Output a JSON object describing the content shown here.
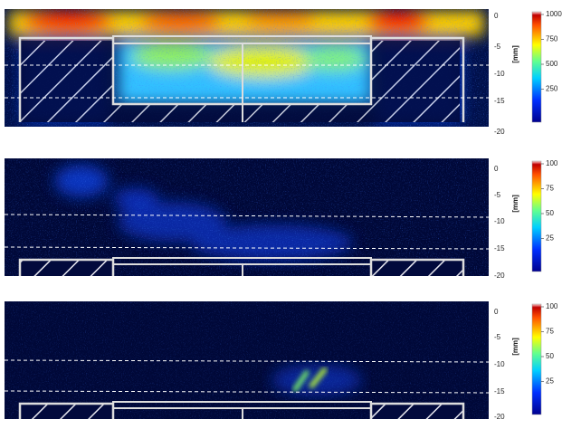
{
  "panels": [
    {
      "y_label": "[mm]",
      "y_ticks": [
        "0",
        "-5",
        "-10",
        "-15",
        "-20"
      ],
      "colorbar_ticks": [
        "1000",
        "750",
        "500",
        "250"
      ]
    },
    {
      "y_label": "[mm]",
      "y_ticks": [
        "0",
        "-5",
        "-10",
        "-15",
        "-20"
      ],
      "colorbar_ticks": [
        "100",
        "75",
        "50",
        "25"
      ]
    },
    {
      "y_label": "[mm]",
      "y_ticks": [
        "0",
        "-5",
        "-10",
        "-15",
        "-20"
      ],
      "colorbar_ticks": [
        "100",
        "75",
        "50",
        "25"
      ]
    }
  ]
}
